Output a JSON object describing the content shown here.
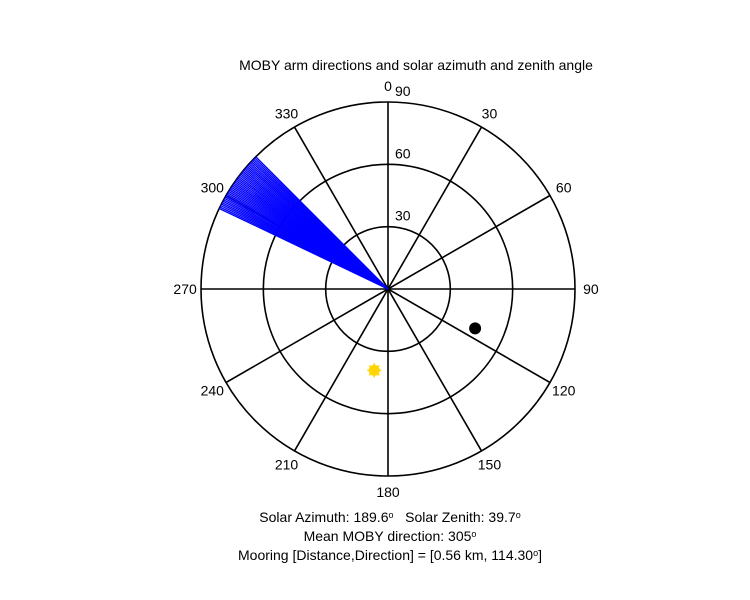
{
  "chart_data": {
    "type": "polar",
    "title": "MOBY arm directions and solar azimuth and zenith angle",
    "angular_ticks": [
      "0",
      "30",
      "60",
      "90",
      "120",
      "150",
      "180",
      "210",
      "240",
      "270",
      "300",
      "330"
    ],
    "angular_tick_values": [
      0,
      30,
      60,
      90,
      120,
      150,
      180,
      210,
      240,
      270,
      300,
      330
    ],
    "radial_ticks": [
      "30",
      "60",
      "90"
    ],
    "radial_tick_values": [
      30,
      60,
      90
    ],
    "rlim": [
      0,
      90
    ],
    "arm_directions": {
      "color": "#0000ff",
      "radius": 90,
      "directions_deg": [
        295.5,
        296.0,
        296.5,
        297.0,
        297.5,
        298.0,
        298.5,
        299.0,
        299.5,
        300.0,
        300.5,
        301.0,
        301.5,
        302.0,
        302.5,
        303.0,
        303.5,
        304.0,
        304.5,
        305.0,
        305.5,
        306.0,
        306.5,
        307.0,
        307.5,
        308.0,
        308.5,
        309.0,
        309.5,
        310.0,
        310.5,
        311.0,
        311.5,
        312.0,
        312.5,
        313.0,
        313.5,
        314.0,
        314.5,
        315.0
      ]
    },
    "mooring_point": {
      "direction_deg": 114.3,
      "radius": 46,
      "color": "#000000"
    },
    "sun_point": {
      "azimuth_deg": 189.6,
      "zenith_deg": 39.7,
      "color": "#ffd400"
    }
  },
  "caption": {
    "line1_solar_azimuth_label": "Solar Azimuth: 189.6",
    "line1_solar_zenith_label": "Solar Zenith: 39.7",
    "line2_label": "Mean MOBY direction: 305",
    "line3_label": "Mooring [Distance,Direction] = [0.56 km, 114.30",
    "line3_end": "]",
    "degree_symbol": "o"
  }
}
